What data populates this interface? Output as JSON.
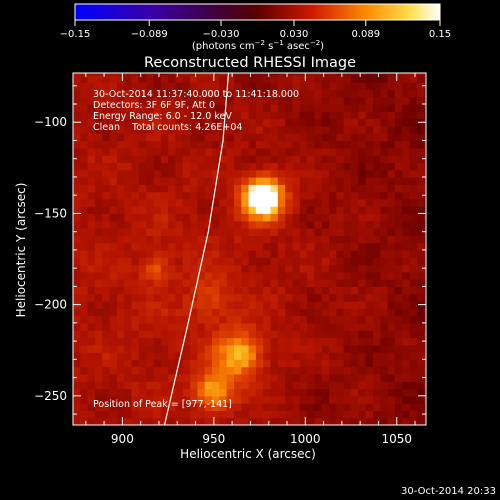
{
  "chart_data": {
    "type": "heatmap",
    "title": "Reconstructed RHESSI Image",
    "xlabel": "Heliocentric X (arcsec)",
    "ylabel": "Heliocentric Y (arcsec)",
    "xlim": [
      873,
      1066
    ],
    "ylim": [
      -266,
      -73
    ],
    "x_ticks": [
      900,
      950,
      1000,
      1050
    ],
    "y_ticks": [
      -100,
      -150,
      -200,
      -250
    ],
    "x_tick_labels": [
      "900",
      "950",
      "1000",
      "1050"
    ],
    "y_tick_labels": [
      "−100",
      "−150",
      "−200",
      "−250"
    ],
    "colorbar": {
      "min": -0.15,
      "max": 0.15,
      "ticks": [
        -0.15,
        -0.089,
        -0.03,
        0.03,
        0.089,
        0.15
      ],
      "tick_labels": [
        "−0.15",
        "−0.089",
        "−0.030",
        "0.030",
        "0.089",
        "0.15"
      ],
      "label_prefix": "(photons cm",
      "label_exp1": "−2",
      "label_mid1": " s",
      "label_exp2": "−1",
      "label_mid2": " asec",
      "label_exp3": "−2",
      "label_suffix": ")",
      "colormap": "red-temperature"
    },
    "annotations": [
      "30-Oct-2014 11:37:40.000 to 11:41:18.000",
      "Detectors: 3F 6F 9F, Att 0",
      "Energy Range: 6.0 - 12.0 keV",
      "Clean    Total counts: 4.26E+04"
    ],
    "peak_label": "Position of Peak = [977,-141]",
    "sources": [
      {
        "x": 977,
        "y": -141,
        "intensity": 1.0,
        "width": 8
      },
      {
        "x": 964,
        "y": -227,
        "intensity": 0.55,
        "width": 9
      },
      {
        "x": 950,
        "y": -247,
        "intensity": 0.5,
        "width": 8
      },
      {
        "x": 918,
        "y": -180,
        "intensity": 0.28,
        "width": 5
      },
      {
        "x": 948,
        "y": -197,
        "intensity": 0.2,
        "width": 8
      }
    ],
    "limb": [
      [
        958,
        -73
      ],
      [
        955,
        -110
      ],
      [
        947,
        -160
      ],
      [
        936,
        -210
      ],
      [
        923,
        -266
      ]
    ],
    "grid": false
  },
  "timestamp": "30-Oct-2014 20:33"
}
